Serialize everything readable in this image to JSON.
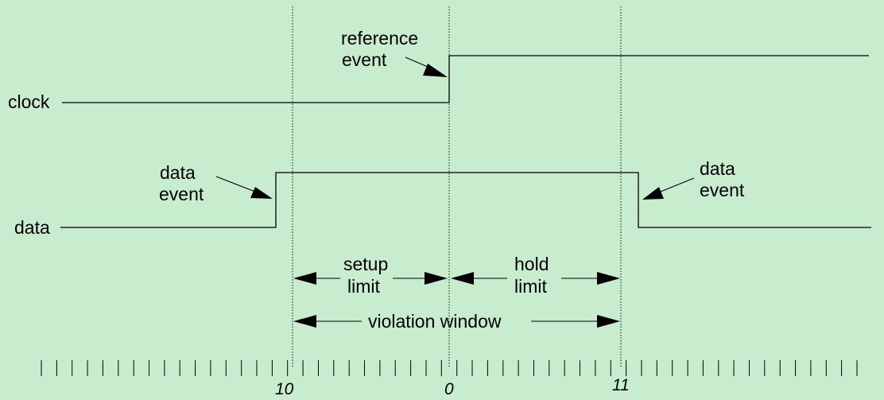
{
  "signals": {
    "clock_label": "clock",
    "data_label": "data"
  },
  "annotations": {
    "reference_event": [
      "reference",
      "event"
    ],
    "data_event_left": [
      "data",
      "event"
    ],
    "data_event_right": [
      "data",
      "event"
    ],
    "setup_limit": [
      "setup",
      "limit"
    ],
    "hold_limit": [
      "hold",
      "limit"
    ],
    "violation_window": "violation window"
  },
  "timeline": {
    "tick_count": 54,
    "labels": {
      "setup_start": "10",
      "reference": "0",
      "hold_end": "11"
    }
  },
  "colors": {
    "background": "#c8ecce",
    "line": "#000000"
  }
}
